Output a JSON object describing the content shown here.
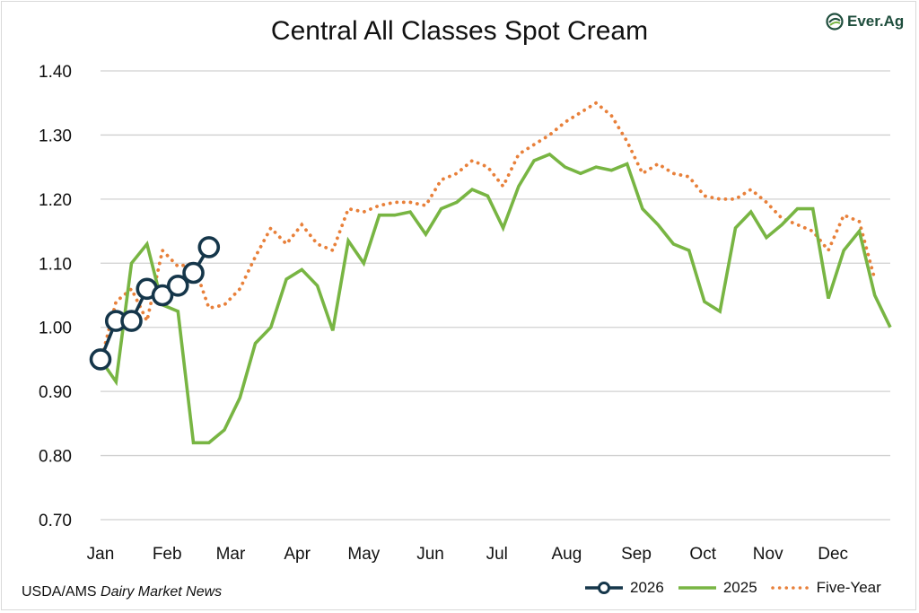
{
  "title": "Central All Classes Spot Cream",
  "logo_text": "Ever.Ag",
  "source": {
    "prefix": "USDA/AMS ",
    "italic": "Dairy Market News"
  },
  "colors": {
    "s2026": "#15364a",
    "s2025": "#78b543",
    "five_year": "#e8803a",
    "grid": "#d0d0d0"
  },
  "legend": [
    {
      "label": "2026",
      "key": "s2026"
    },
    {
      "label": "2025",
      "key": "s2025"
    },
    {
      "label": "Five-Year",
      "key": "five_year"
    }
  ],
  "chart_data": {
    "type": "line",
    "title": "Central All Classes Spot Cream",
    "xlabel": "",
    "ylabel": "",
    "ylim": [
      0.7,
      1.4
    ],
    "x_domain_weeks": [
      0,
      51
    ],
    "y_ticks": [
      "0.70",
      "0.80",
      "0.90",
      "1.00",
      "1.10",
      "1.20",
      "1.30",
      "1.40"
    ],
    "x_ticks": [
      {
        "label": "Jan",
        "week": 0
      },
      {
        "label": "Feb",
        "week": 4.3
      },
      {
        "label": "Mar",
        "week": 8.4
      },
      {
        "label": "Apr",
        "week": 12.7
      },
      {
        "label": "May",
        "week": 17
      },
      {
        "label": "Jun",
        "week": 21.3
      },
      {
        "label": "Jul",
        "week": 25.6
      },
      {
        "label": "Aug",
        "week": 30.1
      },
      {
        "label": "Sep",
        "week": 34.6
      },
      {
        "label": "Oct",
        "week": 38.9
      },
      {
        "label": "Nov",
        "week": 43.1
      },
      {
        "label": "Dec",
        "week": 47.3
      }
    ],
    "grid": true,
    "legend_position": "bottom-right",
    "series": [
      {
        "name": "2026",
        "style": "solid-markers",
        "color_key": "s2026",
        "values": [
          0.95,
          1.01,
          1.01,
          1.06,
          1.05,
          1.065,
          1.085,
          1.125
        ]
      },
      {
        "name": "2025",
        "style": "solid",
        "color_key": "s2025",
        "values": [
          0.95,
          0.915,
          1.1,
          1.13,
          1.035,
          1.025,
          0.82,
          0.82,
          0.84,
          0.89,
          0.975,
          1.0,
          1.075,
          1.09,
          1.065,
          0.995,
          1.135,
          1.1,
          1.175,
          1.175,
          1.18,
          1.145,
          1.185,
          1.195,
          1.215,
          1.205,
          1.155,
          1.22,
          1.26,
          1.27,
          1.25,
          1.24,
          1.25,
          1.245,
          1.255,
          1.185,
          1.16,
          1.13,
          1.12,
          1.04,
          1.025,
          1.155,
          1.18,
          1.14,
          1.16,
          1.185,
          1.185,
          1.045,
          1.12,
          1.15,
          1.05,
          1.0
        ]
      },
      {
        "name": "Five-Year",
        "style": "dotted",
        "color_key": "five_year",
        "values": [
          0.945,
          1.04,
          1.06,
          1.01,
          1.12,
          1.095,
          1.1,
          1.03,
          1.035,
          1.06,
          1.11,
          1.155,
          1.13,
          1.16,
          1.13,
          1.12,
          1.185,
          1.18,
          1.19,
          1.195,
          1.195,
          1.19,
          1.23,
          1.24,
          1.26,
          1.25,
          1.22,
          1.27,
          1.285,
          1.3,
          1.32,
          1.335,
          1.35,
          1.33,
          1.29,
          1.24,
          1.255,
          1.24,
          1.235,
          1.205,
          1.2,
          1.2,
          1.215,
          1.195,
          1.17,
          1.16,
          1.15,
          1.12,
          1.175,
          1.165,
          1.075
        ]
      }
    ]
  }
}
